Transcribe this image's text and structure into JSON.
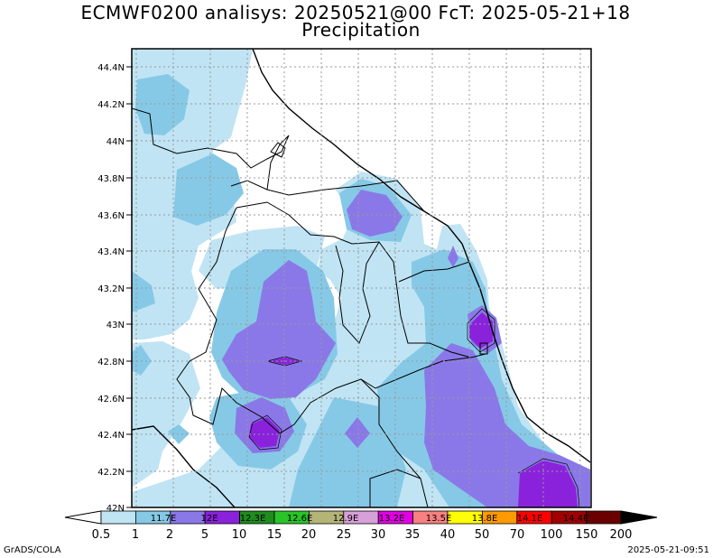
{
  "title_line1": "ECMWF0200 analisys: 20250521@00 FcT: 2025-05-21+18",
  "title_line2": "Precipitation",
  "y_axis_labels": [
    "44.4N",
    "44.2N",
    "44N",
    "43.8N",
    "43.6N",
    "43.4N",
    "43.2N",
    "43N",
    "42.8N",
    "42.6N",
    "42.4N",
    "42.2N",
    "42N"
  ],
  "x_axis_labels": [
    "11.7E",
    "12E",
    "12.3E",
    "12.6E",
    "12.9E",
    "13.2E",
    "13.5E",
    "13.8E",
    "14.1E",
    "14.4E"
  ],
  "colorbar_values": [
    "0.5",
    "1",
    "2",
    "5",
    "10",
    "15",
    "20",
    "25",
    "30",
    "35",
    "40",
    "50",
    "70",
    "100",
    "150",
    "200"
  ],
  "colorbar_colors": [
    "#c0e4f4",
    "#86c9e6",
    "#8a78e8",
    "#8a22dc",
    "#1e8c1e",
    "#28c428",
    "#b4b478",
    "#d8a0d8",
    "#e000e0",
    "#f88080",
    "#ffff00",
    "#ff9a00",
    "#ff0000",
    "#a00000",
    "#6a0000"
  ],
  "map_colors": {
    "light_blue": "#c0e4f4",
    "blue": "#86c9e6",
    "lavender": "#8a78e8",
    "purple": "#8a22dc"
  },
  "footer_left": "GrADS/COLA",
  "footer_right": "2025-05-21-09:51"
}
